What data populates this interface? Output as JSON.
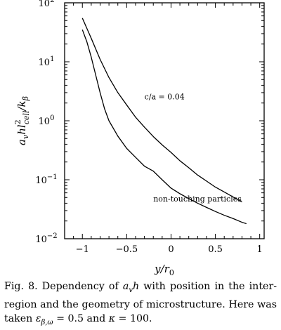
{
  "chart_data": {
    "type": "line",
    "title": "",
    "xlabel": "y/r₀",
    "ylabel": "aᵥhl²ₑₗₗ/kβ",
    "ylabel_parts": {
      "main": "a",
      "sub1": "v",
      "mid": "hl",
      "sup": "2",
      "sub2": "cell",
      "tail": "/k",
      "sub3": "β"
    },
    "xlabel_parts": {
      "main": "y/r",
      "sub": "0"
    },
    "xlim": [
      -1.2,
      1.05
    ],
    "ylim": [
      0.01,
      100
    ],
    "yscale": "log",
    "grid": false,
    "x_ticks": [
      {
        "value": -1,
        "label": "−1"
      },
      {
        "value": -0.5,
        "label": "−0.5"
      },
      {
        "value": 0,
        "label": "0"
      },
      {
        "value": 0.5,
        "label": "0.5"
      },
      {
        "value": 1,
        "label": "1"
      }
    ],
    "y_ticks": [
      {
        "value": 0.01,
        "base": "10",
        "exp": "−2"
      },
      {
        "value": 0.1,
        "base": "10",
        "exp": "−1"
      },
      {
        "value": 1,
        "base": "10",
        "exp": "0"
      },
      {
        "value": 10,
        "base": "10",
        "exp": "1"
      },
      {
        "value": 100,
        "base": "10",
        "exp": "2"
      }
    ],
    "series": [
      {
        "x": [
          -1.0,
          -0.9,
          -0.8,
          -0.7,
          -0.6,
          -0.5,
          -0.4,
          -0.3,
          -0.2,
          -0.1,
          0.0,
          0.1,
          0.2,
          0.3,
          0.4,
          0.5,
          0.6,
          0.7,
          0.8
        ],
        "y": [
          55,
          25,
          11,
          5.4,
          3.0,
          1.85,
          1.15,
          0.78,
          0.54,
          0.39,
          0.29,
          0.21,
          0.16,
          0.12,
          0.095,
          0.075,
          0.062,
          0.051,
          0.042
        ],
        "color": "#000000"
      },
      {
        "x": [
          -1.0,
          -0.95,
          -0.9,
          -0.85,
          -0.8,
          -0.75,
          -0.7,
          -0.6,
          -0.5,
          -0.4,
          -0.3,
          -0.2,
          -0.1,
          0.0,
          0.1,
          0.2,
          0.3,
          0.4,
          0.5,
          0.6,
          0.7,
          0.8,
          0.85
        ],
        "y": [
          35,
          22,
          12,
          6.0,
          3.0,
          1.6,
          1.0,
          0.55,
          0.34,
          0.24,
          0.17,
          0.14,
          0.1,
          0.072,
          0.058,
          0.048,
          0.04,
          0.034,
          0.029,
          0.025,
          0.022,
          0.019,
          0.018
        ],
        "color": "#000000"
      }
    ],
    "annotations": [
      {
        "text": "c/a = 0.04",
        "x": -0.3,
        "y": 2.3
      },
      {
        "text": "non-touching particles",
        "x": -0.2,
        "y": 0.043
      }
    ]
  },
  "caption": {
    "line1": "Fig. 8. Dependency of aᵥh with position in the inter-",
    "line1_parts": [
      "Fig. 8. Dependency of ",
      "a",
      "v",
      "h",
      " with position in the inter-"
    ],
    "line2": "region and the geometry of microstructure. Here was",
    "line3_parts": [
      "taken ",
      "ε",
      "β,ω",
      " = 0.5 and ",
      "κ",
      " = 100."
    ]
  }
}
